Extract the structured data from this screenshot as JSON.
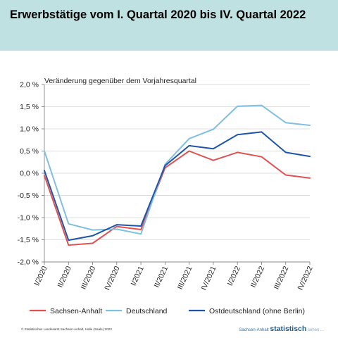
{
  "header": {
    "title": "Erwerbstätige vom I. Quartal 2020 bis IV. Quartal 2022"
  },
  "chart_data": {
    "type": "line",
    "subtitle": "Veränderung gegenüber dem Vorjahresquartal",
    "categories": [
      "I/2020",
      "II/2020",
      "III/2020",
      "IV/2020",
      "I/2021",
      "II/2021",
      "III/2021",
      "IV/2021",
      "I/2022",
      "II/2022",
      "III/2022",
      "IV/2022"
    ],
    "ylim": [
      -2.0,
      2.0
    ],
    "yticks": [
      2.0,
      1.5,
      1.0,
      0.5,
      0.0,
      -0.5,
      -1.0,
      -1.5,
      -2.0
    ],
    "ytick_labels": [
      "2,0 %",
      "1,5 %",
      "1,0 %",
      "0,5 %",
      "0,0 %",
      "-0,5 %",
      "-1,0 %",
      "-1,5 %",
      "-2,0 %"
    ],
    "grid": "horizontal",
    "legend_position": "bottom",
    "series": [
      {
        "name": "Sachsen-Anhalt",
        "color": "#e05252",
        "values": [
          -0.05,
          -1.62,
          -1.58,
          -1.2,
          -1.27,
          0.12,
          0.5,
          0.29,
          0.47,
          0.37,
          -0.04,
          -0.11
        ]
      },
      {
        "name": "Deutschland",
        "color": "#7fbfe0",
        "values": [
          0.5,
          -1.14,
          -1.28,
          -1.26,
          -1.37,
          0.2,
          0.78,
          0.99,
          1.51,
          1.53,
          1.14,
          1.08
        ]
      },
      {
        "name": "Ostdeutschland (ohne Berlin)",
        "color": "#1f55a8",
        "values": [
          0.06,
          -1.51,
          -1.41,
          -1.16,
          -1.19,
          0.17,
          0.62,
          0.55,
          0.87,
          0.93,
          0.47,
          0.38
        ]
      }
    ]
  },
  "footer": {
    "source": "© Statistisches Landesamt Sachsen-Anhalt, Halle (Saale) 2023",
    "brand_prefix": "Sachsen-Anhalt",
    "brand": "statistisch",
    "brand_suffix": "sehen ..."
  }
}
